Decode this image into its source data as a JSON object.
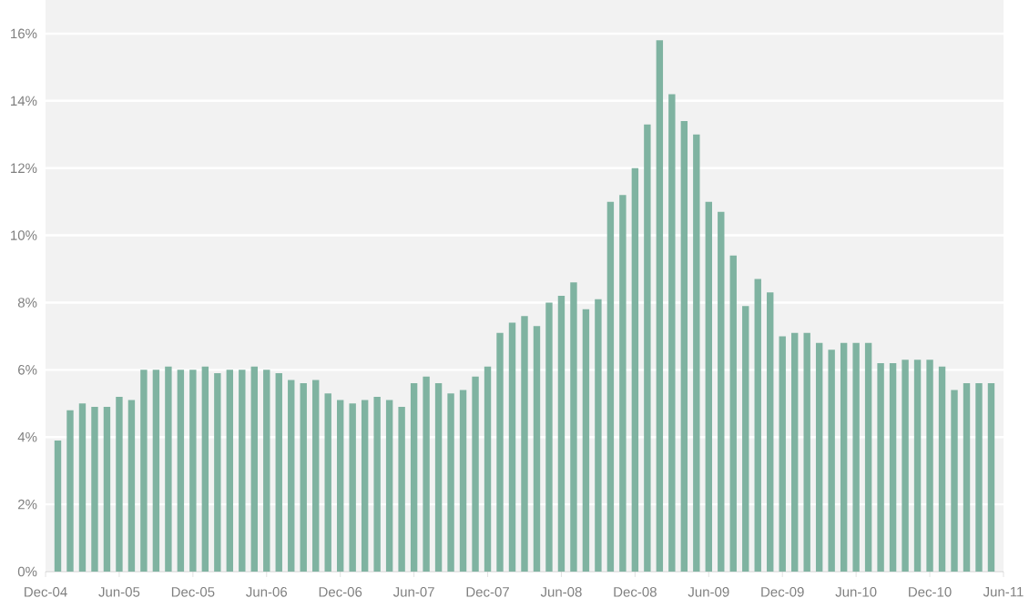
{
  "chart_data": {
    "type": "bar",
    "color": "#7fb3a1",
    "x": [
      "2005-01",
      "2005-02",
      "2005-03",
      "2005-04",
      "2005-05",
      "2005-06",
      "2005-07",
      "2005-08",
      "2005-09",
      "2005-10",
      "2005-11",
      "2005-12",
      "2006-01",
      "2006-02",
      "2006-03",
      "2006-04",
      "2006-05",
      "2006-06",
      "2006-07",
      "2006-08",
      "2006-09",
      "2006-10",
      "2006-11",
      "2006-12",
      "2007-01",
      "2007-02",
      "2007-03",
      "2007-04",
      "2007-05",
      "2007-06",
      "2007-07",
      "2007-08",
      "2007-09",
      "2007-10",
      "2007-11",
      "2007-12",
      "2008-01",
      "2008-02",
      "2008-03",
      "2008-04",
      "2008-05",
      "2008-06",
      "2008-07",
      "2008-08",
      "2008-09",
      "2008-10",
      "2008-11",
      "2008-12",
      "2009-01",
      "2009-02",
      "2009-03",
      "2009-04",
      "2009-05",
      "2009-06",
      "2009-07",
      "2009-08",
      "2009-09",
      "2009-10",
      "2009-11",
      "2009-12",
      "2010-01",
      "2010-02",
      "2010-03",
      "2010-04",
      "2010-05",
      "2010-06",
      "2010-07",
      "2010-08",
      "2010-09",
      "2010-10",
      "2010-11",
      "2010-12",
      "2011-01",
      "2011-02",
      "2011-03",
      "2011-04",
      "2011-05"
    ],
    "values": [
      3.9,
      4.8,
      5.0,
      4.9,
      4.9,
      5.2,
      5.1,
      6.0,
      6.0,
      6.1,
      6.0,
      6.0,
      6.1,
      5.9,
      6.0,
      6.0,
      6.1,
      6.0,
      5.9,
      5.7,
      5.6,
      5.7,
      5.3,
      5.1,
      5.0,
      5.1,
      5.2,
      5.1,
      4.9,
      5.6,
      5.8,
      5.6,
      5.3,
      5.4,
      5.8,
      6.1,
      7.1,
      7.4,
      7.6,
      7.3,
      8.0,
      8.2,
      8.6,
      7.8,
      8.1,
      11.0,
      11.2,
      12.0,
      13.3,
      15.8,
      14.2,
      13.4,
      13.0,
      11.0,
      10.7,
      9.4,
      7.9,
      8.7,
      8.3,
      7.0,
      7.1,
      7.1,
      6.8,
      6.6,
      6.8,
      6.8,
      6.8,
      6.2,
      6.2,
      6.3,
      6.3,
      6.3,
      6.1,
      5.4,
      5.6,
      5.6,
      5.6
    ],
    "xlim": [
      "2004-12",
      "2011-06"
    ],
    "xticks": [
      {
        "value": "2004-12",
        "label": "Dec-04"
      },
      {
        "value": "2005-06",
        "label": "Jun-05"
      },
      {
        "value": "2005-12",
        "label": "Dec-05"
      },
      {
        "value": "2006-06",
        "label": "Jun-06"
      },
      {
        "value": "2006-12",
        "label": "Dec-06"
      },
      {
        "value": "2007-06",
        "label": "Jun-07"
      },
      {
        "value": "2007-12",
        "label": "Dec-07"
      },
      {
        "value": "2008-06",
        "label": "Jun-08"
      },
      {
        "value": "2008-12",
        "label": "Dec-08"
      },
      {
        "value": "2009-06",
        "label": "Jun-09"
      },
      {
        "value": "2009-12",
        "label": "Dec-09"
      },
      {
        "value": "2010-06",
        "label": "Jun-10"
      },
      {
        "value": "2010-12",
        "label": "Dec-10"
      },
      {
        "value": "2011-06",
        "label": "Jun-11"
      }
    ],
    "ylim": [
      0,
      17
    ],
    "yticks": [
      {
        "value": 0,
        "label": "0%"
      },
      {
        "value": 2,
        "label": "2%"
      },
      {
        "value": 4,
        "label": "4%"
      },
      {
        "value": 6,
        "label": "6%"
      },
      {
        "value": 8,
        "label": "8%"
      },
      {
        "value": 10,
        "label": "10%"
      },
      {
        "value": 12,
        "label": "12%"
      },
      {
        "value": 14,
        "label": "14%"
      },
      {
        "value": 16,
        "label": "16%"
      }
    ],
    "grid": "y"
  }
}
